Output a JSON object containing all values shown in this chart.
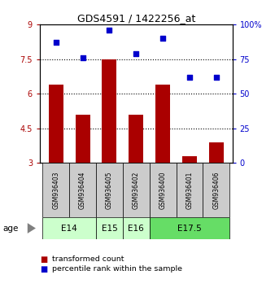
{
  "title": "GDS4591 / 1422256_at",
  "samples": [
    "GSM936403",
    "GSM936404",
    "GSM936405",
    "GSM936402",
    "GSM936400",
    "GSM936401",
    "GSM936406"
  ],
  "bar_values": [
    6.4,
    5.1,
    7.5,
    5.1,
    6.4,
    3.3,
    3.9
  ],
  "scatter_values": [
    87,
    76,
    96,
    79,
    90,
    62,
    62
  ],
  "bar_color": "#AA0000",
  "scatter_color": "#0000CC",
  "ylim_left": [
    3,
    9
  ],
  "ylim_right": [
    0,
    100
  ],
  "yticks_left": [
    3,
    4.5,
    6,
    7.5,
    9
  ],
  "yticks_right": [
    0,
    25,
    50,
    75,
    100
  ],
  "ytick_labels_left": [
    "3",
    "4.5",
    "6",
    "7.5",
    "9"
  ],
  "ytick_labels_right": [
    "0",
    "25",
    "50",
    "75",
    "100%"
  ],
  "hlines": [
    4.5,
    6.0,
    7.5
  ],
  "age_groups": [
    {
      "label": "E14",
      "samples": [
        "GSM936403",
        "GSM936404"
      ],
      "color": "#ccffcc"
    },
    {
      "label": "E15",
      "samples": [
        "GSM936405"
      ],
      "color": "#ccffcc"
    },
    {
      "label": "E16",
      "samples": [
        "GSM936402"
      ],
      "color": "#ccffcc"
    },
    {
      "label": "E17.5",
      "samples": [
        "GSM936400",
        "GSM936401",
        "GSM936406"
      ],
      "color": "#66dd66"
    }
  ],
  "legend_bar_label": "transformed count",
  "legend_scatter_label": "percentile rank within the sample",
  "age_label": "age",
  "tick_area_color": "#cccccc",
  "fig_width": 3.38,
  "fig_height": 3.54,
  "dpi": 100
}
